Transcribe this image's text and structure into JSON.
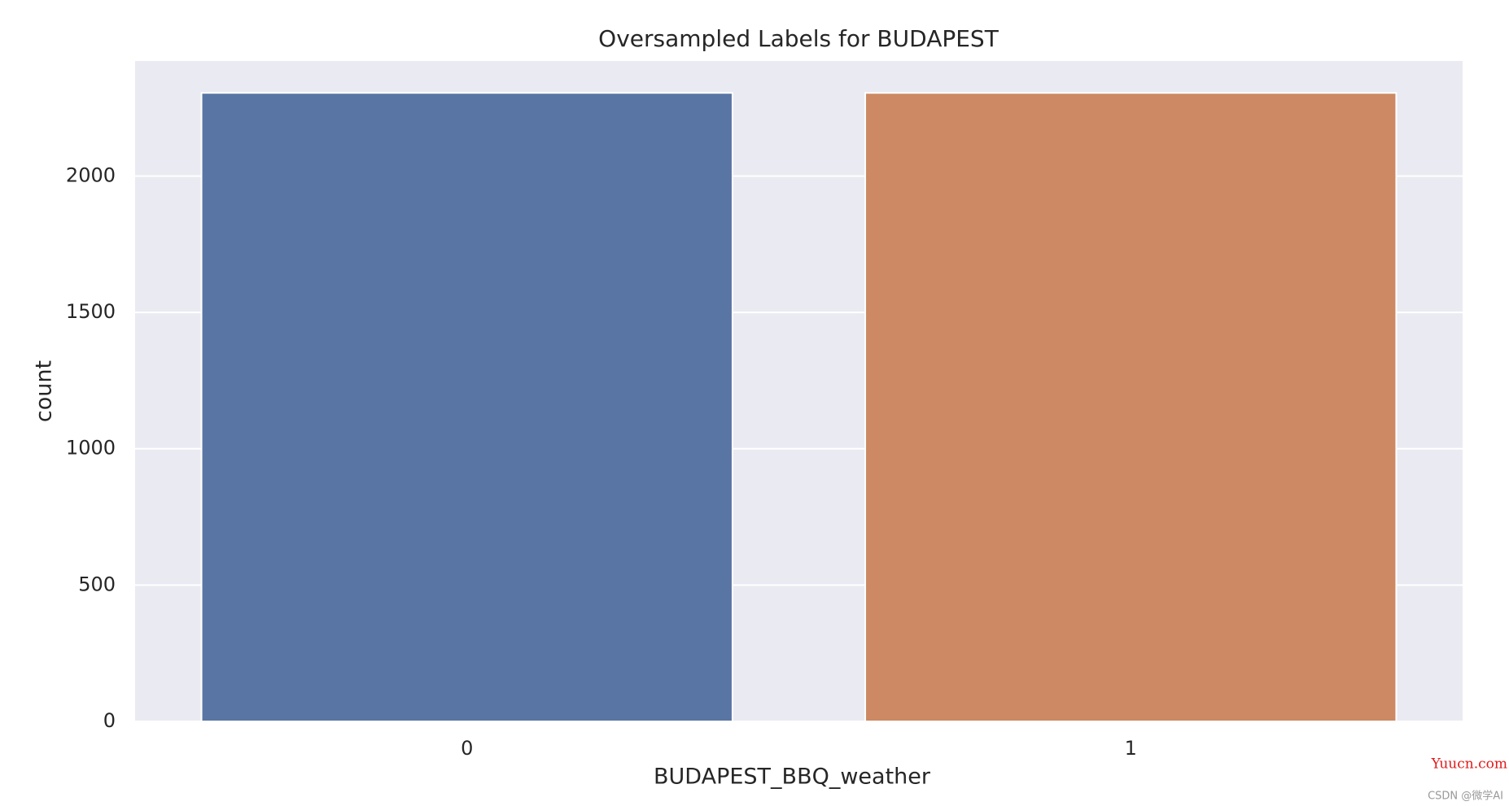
{
  "chart_data": {
    "type": "bar",
    "title": "Oversampled Labels for BUDAPEST",
    "x_label": "BUDAPEST_BBQ_weather",
    "y_label": "count",
    "categories": [
      "0",
      "1"
    ],
    "values": [
      2305,
      2305
    ],
    "colors": [
      "#5975a4",
      "#cc8963"
    ],
    "ylim": [
      0,
      2422
    ],
    "yticks": [
      0,
      500,
      1000,
      1500,
      2000
    ],
    "grid": true,
    "watermarks": [
      "Yuucn.com",
      "CSDN @微学AI"
    ]
  }
}
